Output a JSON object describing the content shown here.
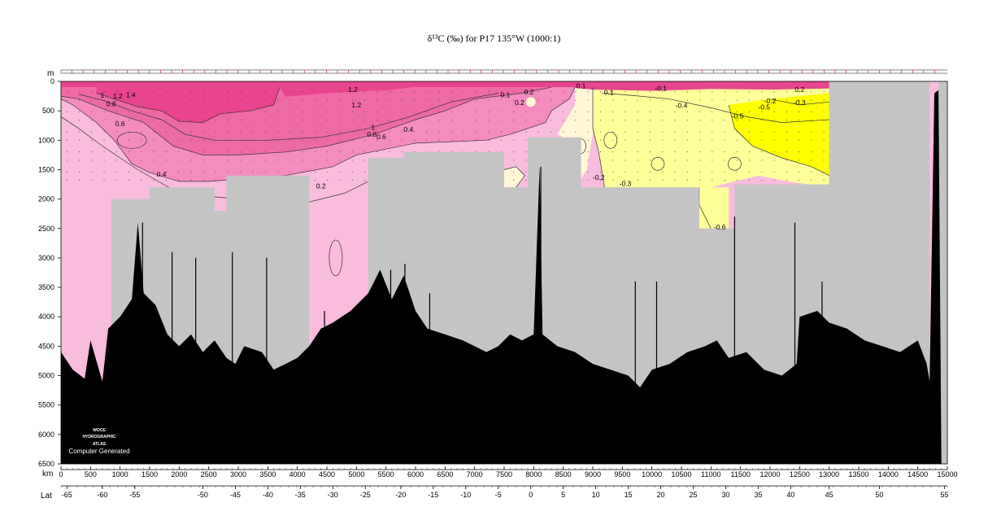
{
  "title": "δ¹³C (‰) for P17 135°W (1000:1)",
  "watermark": {
    "line1": "WOCE",
    "line2": "HYDROGRAPHIC",
    "line3": "ATLAS",
    "line4": "Computer Generated"
  },
  "chart_data": {
    "type": "heatmap",
    "title": "δ¹³C (‰) for P17 135°W (1000:1)",
    "y_axis": {
      "label": "m",
      "range": [
        0,
        6500
      ],
      "ticks": [
        0,
        500,
        1000,
        1500,
        2000,
        2500,
        3000,
        3500,
        4000,
        4500,
        5000,
        5500,
        6000,
        6500
      ],
      "inverted": true
    },
    "x_axis": {
      "label": "km",
      "range": [
        0,
        15000
      ],
      "ticks": [
        0,
        500,
        1000,
        1500,
        2000,
        2500,
        3000,
        3500,
        4000,
        4500,
        5000,
        5500,
        6000,
        6500,
        7000,
        7500,
        8000,
        8500,
        9000,
        9500,
        10000,
        10500,
        11000,
        11500,
        12000,
        12500,
        13000,
        13500,
        14000,
        14500,
        15000
      ]
    },
    "lat_axis": {
      "label": "Lat",
      "ticks": [
        {
          "km": 100,
          "label": "-65"
        },
        {
          "km": 700,
          "label": "-60"
        },
        {
          "km": 1250,
          "label": "-55"
        },
        {
          "km": 2400,
          "label": "-50"
        },
        {
          "km": 2950,
          "label": "-45"
        },
        {
          "km": 3500,
          "label": "-40"
        },
        {
          "km": 4050,
          "label": "-35"
        },
        {
          "km": 4600,
          "label": "-30"
        },
        {
          "km": 5150,
          "label": "-25"
        },
        {
          "km": 5750,
          "label": "-20"
        },
        {
          "km": 6300,
          "label": "-15"
        },
        {
          "km": 6850,
          "label": "-10"
        },
        {
          "km": 7400,
          "label": "-5"
        },
        {
          "km": 7950,
          "label": "0"
        },
        {
          "km": 8500,
          "label": "5"
        },
        {
          "km": 9050,
          "label": "10"
        },
        {
          "km": 9600,
          "label": "15"
        },
        {
          "km": 10150,
          "label": "20"
        },
        {
          "km": 10700,
          "label": "25"
        },
        {
          "km": 11250,
          "label": "30"
        },
        {
          "km": 11800,
          "label": "35"
        },
        {
          "km": 12350,
          "label": "40"
        },
        {
          "km": 13000,
          "label": "45"
        },
        {
          "km": 13850,
          "label": "50"
        },
        {
          "km": 14950,
          "label": "55"
        }
      ]
    },
    "color_levels": [
      {
        "range": "> 1.2",
        "color": "#e8448f"
      },
      {
        "range": "1.0 – 1.2",
        "color": "#ee6aa4"
      },
      {
        "range": "0.6 – 1.0",
        "color": "#f58cc0"
      },
      {
        "range": "0.2 – 0.6",
        "color": "#f9bcdd"
      },
      {
        "range": "0 – 0.2",
        "color": "#fff7d6"
      },
      {
        "range": "-0.3 – 0",
        "color": "#ffff9a"
      },
      {
        "range": "< -0.3",
        "color": "#ffff00"
      }
    ],
    "contour_labels": [
      {
        "km": 700,
        "depth": 280,
        "label": "1"
      },
      {
        "km": 960,
        "depth": 290,
        "label": "1.2"
      },
      {
        "km": 1180,
        "depth": 270,
        "label": "1.4"
      },
      {
        "km": 850,
        "depth": 420,
        "label": "0.8"
      },
      {
        "km": 1000,
        "depth": 760,
        "label": "0.6"
      },
      {
        "km": 1700,
        "depth": 1620,
        "label": "0.4"
      },
      {
        "km": 4400,
        "depth": 1820,
        "label": "0.2"
      },
      {
        "km": 4940,
        "depth": 180,
        "label": "1.2"
      },
      {
        "km": 5000,
        "depth": 440,
        "label": "1.2"
      },
      {
        "km": 5280,
        "depth": 820,
        "label": "1"
      },
      {
        "km": 5260,
        "depth": 940,
        "label": "0.8"
      },
      {
        "km": 5420,
        "depth": 980,
        "label": "0.6"
      },
      {
        "km": 5880,
        "depth": 860,
        "label": "0.4"
      },
      {
        "km": 7520,
        "depth": 270,
        "label": "0.1"
      },
      {
        "km": 7920,
        "depth": 220,
        "label": "0.2"
      },
      {
        "km": 7760,
        "depth": 400,
        "label": "0.2"
      },
      {
        "km": 8800,
        "depth": 120,
        "label": "0.1"
      },
      {
        "km": 9250,
        "depth": 230,
        "label": "-0.1"
      },
      {
        "km": 10150,
        "depth": 160,
        "label": "-0.1"
      },
      {
        "km": 10500,
        "depth": 450,
        "label": "-0.4"
      },
      {
        "km": 11450,
        "depth": 630,
        "label": "-0.5"
      },
      {
        "km": 12000,
        "depth": 370,
        "label": "-0.2"
      },
      {
        "km": 11900,
        "depth": 480,
        "label": "-0.5"
      },
      {
        "km": 12500,
        "depth": 400,
        "label": "-0.3"
      },
      {
        "km": 12500,
        "depth": 180,
        "label": "0.2"
      },
      {
        "km": 9100,
        "depth": 1670,
        "label": "-0.2"
      },
      {
        "km": 9550,
        "depth": 1780,
        "label": "-0.3"
      },
      {
        "km": 11150,
        "depth": 2520,
        "label": "-0.6"
      }
    ]
  }
}
